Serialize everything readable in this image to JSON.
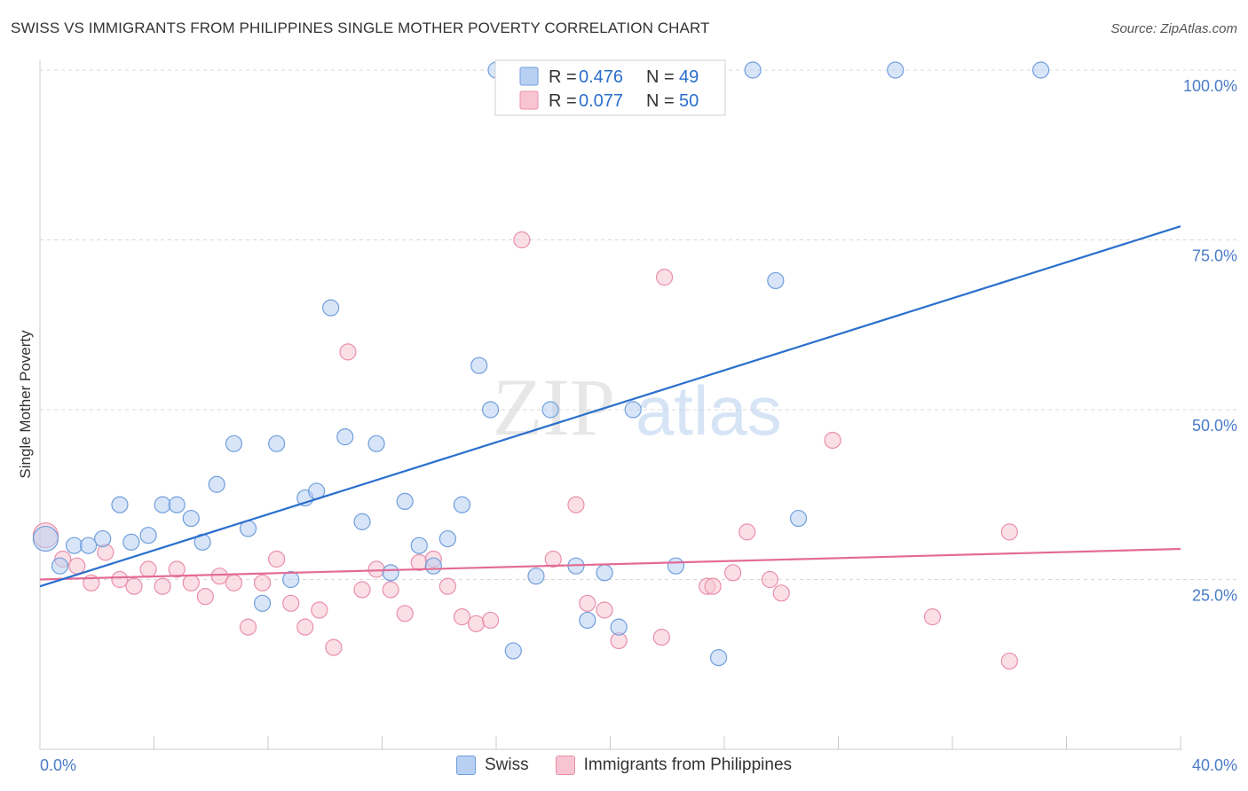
{
  "header": {
    "title": "SWISS VS IMMIGRANTS FROM PHILIPPINES SINGLE MOTHER POVERTY CORRELATION CHART",
    "source": "Source: ZipAtlas.com"
  },
  "watermark": {
    "zip": "ZIP",
    "atlas": "atlas"
  },
  "stats_legend": {
    "swiss": {
      "r_label": "R = ",
      "r_value": "0.476",
      "n_label": "N = ",
      "n_value": "49"
    },
    "philippines": {
      "r_label": "R = ",
      "r_value": "0.077",
      "n_label": "N = ",
      "n_value": "50"
    }
  },
  "bottom_legend": {
    "swiss": "Swiss",
    "philippines": "Immigrants from Philippines"
  },
  "colors": {
    "swiss_fill": "#b8d0f2",
    "swiss_stroke": "#6f9edc",
    "swiss_line": "#2a6fcd",
    "phil_fill": "#f8c4d2",
    "phil_stroke": "#e98fab",
    "phil_line": "#e36b95",
    "tick_text": "#4a7cc7",
    "grid": "#d8d8d8"
  },
  "chart_data": {
    "type": "scatter",
    "title": "SWISS VS IMMIGRANTS FROM PHILIPPINES SINGLE MOTHER POVERTY CORRELATION CHART",
    "xlabel": "",
    "ylabel": "Single Mother Poverty",
    "xlim": [
      0,
      40
    ],
    "ylim": [
      0,
      100
    ],
    "x_tick_labels": [
      "0.0%",
      "40.0%"
    ],
    "y_ticks": [
      25,
      50,
      75,
      100
    ],
    "y_tick_labels": [
      "25.0%",
      "50.0%",
      "75.0%",
      "100.0%"
    ],
    "grid": true,
    "legend_position": "top-center",
    "series": [
      {
        "name": "Swiss",
        "r": 0.476,
        "n": 49,
        "trend": {
          "x": [
            0,
            40
          ],
          "y": [
            24.0,
            77.0
          ]
        },
        "points": [
          [
            0.2,
            31.0,
            14
          ],
          [
            0.7,
            27.0,
            9
          ],
          [
            1.2,
            30.0,
            9
          ],
          [
            1.7,
            30.0,
            9
          ],
          [
            2.2,
            31.0,
            9
          ],
          [
            2.8,
            36.0,
            9
          ],
          [
            3.2,
            30.5,
            9
          ],
          [
            3.8,
            31.5,
            9
          ],
          [
            4.3,
            36.0,
            9
          ],
          [
            4.8,
            36.0,
            9
          ],
          [
            5.3,
            34.0,
            9
          ],
          [
            5.7,
            30.5,
            9
          ],
          [
            6.2,
            39.0,
            9
          ],
          [
            6.8,
            45.0,
            9
          ],
          [
            7.3,
            32.5,
            9
          ],
          [
            7.8,
            21.5,
            9
          ],
          [
            8.3,
            45.0,
            9
          ],
          [
            8.8,
            25.0,
            9
          ],
          [
            9.3,
            37.0,
            9
          ],
          [
            9.7,
            38.0,
            9
          ],
          [
            10.2,
            65.0,
            9
          ],
          [
            10.7,
            46.0,
            9
          ],
          [
            11.3,
            33.5,
            9
          ],
          [
            11.8,
            45.0,
            9
          ],
          [
            12.3,
            26.0,
            9
          ],
          [
            12.8,
            36.5,
            9
          ],
          [
            13.3,
            30.0,
            9
          ],
          [
            13.8,
            27.0,
            9
          ],
          [
            14.3,
            31.0,
            9
          ],
          [
            14.8,
            36.0,
            9
          ],
          [
            15.4,
            56.5,
            9
          ],
          [
            15.8,
            50.0,
            9
          ],
          [
            16.0,
            100.0,
            9
          ],
          [
            16.6,
            14.5,
            9
          ],
          [
            17.4,
            25.5,
            9
          ],
          [
            17.9,
            50.0,
            9
          ],
          [
            18.8,
            27.0,
            9
          ],
          [
            19.2,
            19.0,
            9
          ],
          [
            19.8,
            26.0,
            9
          ],
          [
            20.3,
            18.0,
            9
          ],
          [
            20.8,
            50.0,
            9
          ],
          [
            21.8,
            100.0,
            9
          ],
          [
            22.3,
            27.0,
            9
          ],
          [
            23.8,
            13.5,
            9
          ],
          [
            25.0,
            100.0,
            9
          ],
          [
            25.8,
            69.0,
            9
          ],
          [
            26.6,
            34.0,
            9
          ],
          [
            30.0,
            100.0,
            9
          ],
          [
            35.1,
            100.0,
            9
          ]
        ]
      },
      {
        "name": "Immigrants from Philippines",
        "r": 0.077,
        "n": 50,
        "trend": {
          "x": [
            0,
            40
          ],
          "y": [
            25.0,
            29.5
          ]
        },
        "points": [
          [
            0.2,
            31.5,
            14
          ],
          [
            0.8,
            28.0,
            9
          ],
          [
            1.3,
            27.0,
            9
          ],
          [
            1.8,
            24.5,
            9
          ],
          [
            2.3,
            29.0,
            9
          ],
          [
            2.8,
            25.0,
            9
          ],
          [
            3.3,
            24.0,
            9
          ],
          [
            3.8,
            26.5,
            9
          ],
          [
            4.3,
            24.0,
            9
          ],
          [
            4.8,
            26.5,
            9
          ],
          [
            5.3,
            24.5,
            9
          ],
          [
            5.8,
            22.5,
            9
          ],
          [
            6.3,
            25.5,
            9
          ],
          [
            6.8,
            24.5,
            9
          ],
          [
            7.3,
            18.0,
            9
          ],
          [
            7.8,
            24.5,
            9
          ],
          [
            8.3,
            28.0,
            9
          ],
          [
            8.8,
            21.5,
            9
          ],
          [
            9.3,
            18.0,
            9
          ],
          [
            9.8,
            20.5,
            9
          ],
          [
            10.3,
            15.0,
            9
          ],
          [
            10.8,
            58.5,
            9
          ],
          [
            11.3,
            23.5,
            9
          ],
          [
            11.8,
            26.5,
            9
          ],
          [
            12.3,
            23.5,
            9
          ],
          [
            12.8,
            20.0,
            9
          ],
          [
            13.3,
            27.5,
            9
          ],
          [
            13.8,
            28.0,
            9
          ],
          [
            14.3,
            24.0,
            9
          ],
          [
            14.8,
            19.5,
            9
          ],
          [
            15.3,
            18.5,
            9
          ],
          [
            15.8,
            19.0,
            9
          ],
          [
            16.9,
            75.0,
            9
          ],
          [
            18.0,
            28.0,
            9
          ],
          [
            18.8,
            36.0,
            9
          ],
          [
            19.2,
            21.5,
            9
          ],
          [
            19.8,
            20.5,
            9
          ],
          [
            20.3,
            16.0,
            9
          ],
          [
            21.8,
            16.5,
            9
          ],
          [
            21.9,
            69.5,
            9
          ],
          [
            23.4,
            24.0,
            9
          ],
          [
            23.6,
            24.0,
            9
          ],
          [
            24.3,
            26.0,
            9
          ],
          [
            24.8,
            32.0,
            9
          ],
          [
            25.6,
            25.0,
            9
          ],
          [
            26.0,
            23.0,
            9
          ],
          [
            27.8,
            45.5,
            9
          ],
          [
            31.3,
            19.5,
            9
          ],
          [
            34.0,
            32.0,
            9
          ],
          [
            34.0,
            13.0,
            9
          ]
        ]
      }
    ]
  }
}
